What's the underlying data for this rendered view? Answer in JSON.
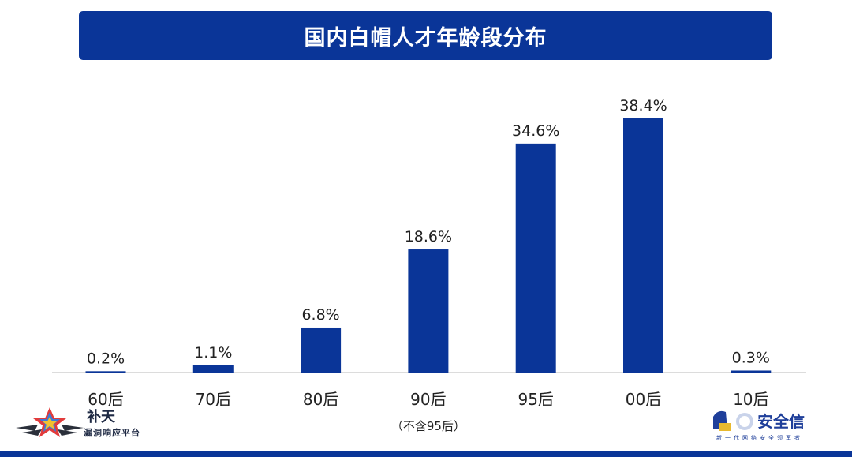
{
  "title": "国内白帽人才年龄段分布",
  "colors": {
    "accent": "#0a3598",
    "bar": "#0a3598",
    "axis": "#c8c8c8",
    "text": "#222222"
  },
  "chart_data": {
    "type": "bar",
    "categories": [
      "60后",
      "70后",
      "80后",
      "90后",
      "95后",
      "00后",
      "10后"
    ],
    "category_notes": [
      "",
      "",
      "",
      "（不含95后）",
      "",
      "",
      ""
    ],
    "values": [
      0.2,
      1.1,
      6.8,
      18.6,
      34.6,
      38.4,
      0.3
    ],
    "value_labels": [
      "0.2%",
      "1.1%",
      "6.8%",
      "18.6%",
      "34.6%",
      "38.4%",
      "0.3%"
    ],
    "unit": "%",
    "ylim": [
      0,
      38.4
    ],
    "grid": false,
    "legend": "none"
  },
  "logos": {
    "left": {
      "name": "补天",
      "subtitle": "漏洞响应平台",
      "icon": "star-wing-logo-icon"
    },
    "right": {
      "name": "安全信",
      "subtitle": "新一代网络安全领军者",
      "icon": "helmet-logo-icon"
    }
  }
}
